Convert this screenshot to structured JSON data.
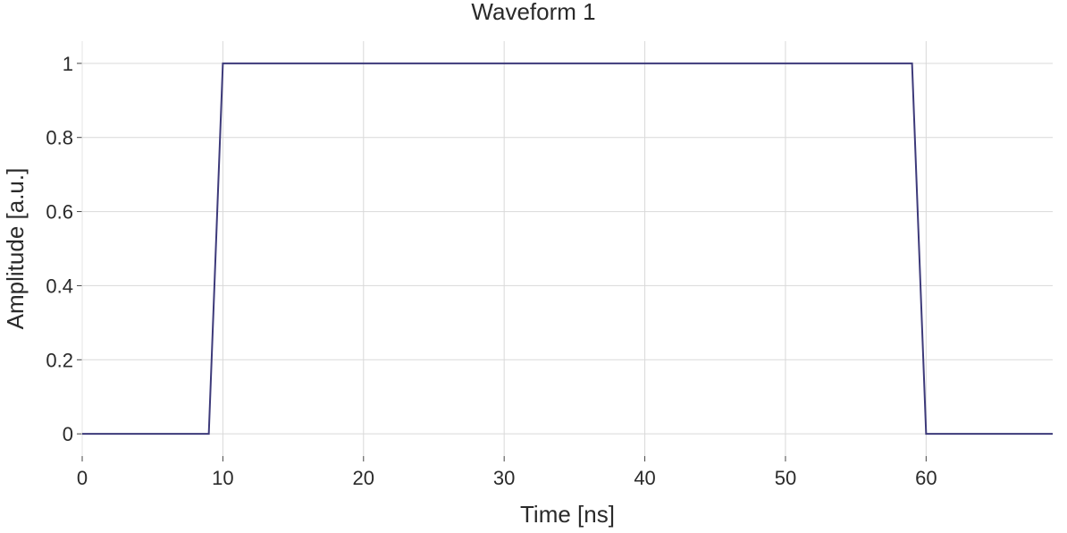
{
  "chart_data": {
    "type": "line",
    "title": "Waveform 1",
    "xlabel": "Time [ns]",
    "ylabel": "Amplitude [a.u.]",
    "xlim": [
      0,
      69
    ],
    "ylim": [
      -0.06,
      1.06
    ],
    "x_ticks": [
      0,
      10,
      20,
      30,
      40,
      50,
      60
    ],
    "y_ticks": [
      0,
      0.2,
      0.4,
      0.6,
      0.8,
      1
    ],
    "y_tick_labels": [
      "0",
      "0.2",
      "0.4",
      "0.6",
      "0.8",
      "1"
    ],
    "grid": true,
    "series": [
      {
        "color": "#3d3a7a",
        "x": [
          0,
          9,
          10,
          59,
          60,
          69
        ],
        "y": [
          0,
          0,
          1,
          1,
          0,
          0
        ]
      }
    ]
  }
}
